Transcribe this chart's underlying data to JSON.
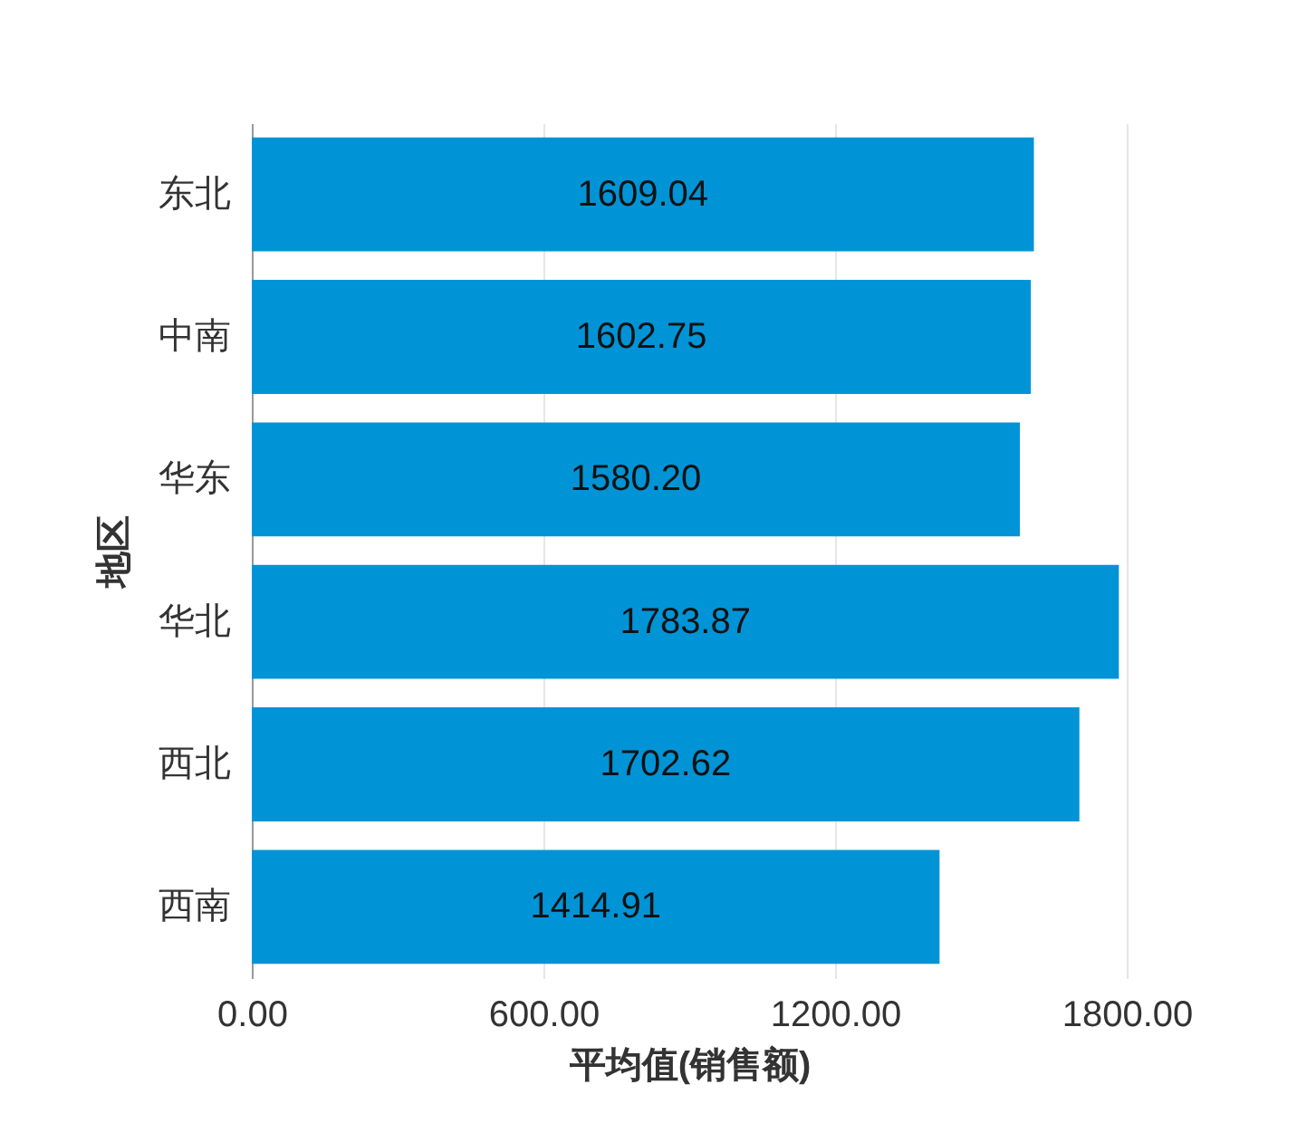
{
  "chart_data": {
    "type": "bar",
    "orientation": "horizontal",
    "xlabel": "平均值(销售额)",
    "ylabel": "地区",
    "categories": [
      "东北",
      "中南",
      "华东",
      "华北",
      "西北",
      "西南"
    ],
    "values": [
      1609.04,
      1602.75,
      1580.2,
      1783.87,
      1702.62,
      1414.91
    ],
    "value_labels": [
      "1609.04",
      "1602.75",
      "1580.20",
      "1783.87",
      "1702.62",
      "1414.91"
    ],
    "color": "#0094d6",
    "xlim": [
      0,
      1800
    ],
    "xticks": [
      {
        "value": 0,
        "label": "0.00"
      },
      {
        "value": 600,
        "label": "600.00"
      },
      {
        "value": 1200,
        "label": "1200.00"
      },
      {
        "value": 1800,
        "label": "1800.00"
      }
    ],
    "grid": "x"
  }
}
